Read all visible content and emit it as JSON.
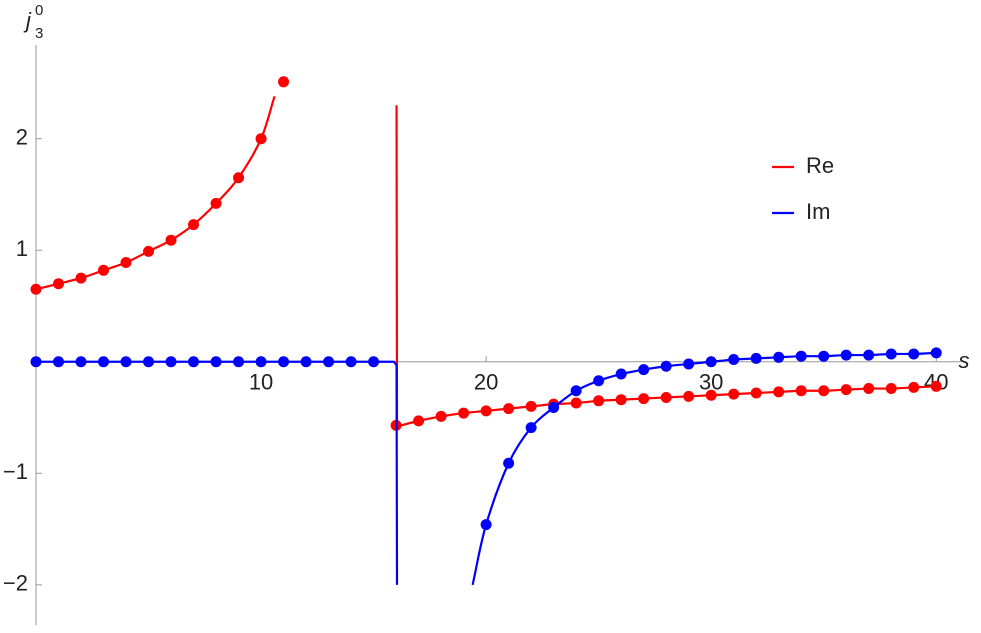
{
  "chart_data": {
    "type": "line",
    "x_label": "s",
    "y_label": {
      "base": "j",
      "sub": "3",
      "sup": "0"
    },
    "xlim": [
      0,
      41.1
    ],
    "ylim": [
      -2.36,
      2.84
    ],
    "xticks": [
      10,
      20,
      30,
      40
    ],
    "yticks": [
      {
        "value": -2,
        "label": "−2"
      },
      {
        "value": -1,
        "label": "−1"
      },
      1,
      2
    ],
    "legend": "upper right",
    "series": [
      {
        "name": "Re",
        "color": "#ff0000",
        "x": [
          0,
          1,
          2,
          3,
          4,
          5,
          6,
          7,
          8,
          9,
          10,
          10.6,
          null,
          16.02,
          16.04,
          17,
          18,
          19,
          20,
          21,
          22,
          23,
          24,
          25,
          26,
          27,
          28,
          29,
          30,
          31,
          32,
          33,
          34,
          35,
          36,
          37,
          38,
          39,
          40
        ],
        "values": [
          0.65,
          0.7,
          0.75,
          0.82,
          0.89,
          0.99,
          1.09,
          1.23,
          1.42,
          1.65,
          2.0,
          2.38,
          null,
          2.3,
          -0.58,
          -0.53,
          -0.49,
          -0.46,
          -0.44,
          -0.42,
          -0.4,
          -0.38,
          -0.37,
          -0.35,
          -0.34,
          -0.33,
          -0.32,
          -0.31,
          -0.3,
          -0.29,
          -0.28,
          -0.27,
          -0.26,
          -0.26,
          -0.25,
          -0.24,
          -0.24,
          -0.23,
          -0.22
        ],
        "marker_x": [
          0,
          1,
          2,
          3,
          4,
          5,
          6,
          7,
          8,
          9,
          10,
          11,
          16,
          17,
          18,
          19,
          20,
          21,
          22,
          23,
          24,
          25,
          26,
          27,
          28,
          29,
          30,
          31,
          32,
          33,
          34,
          35,
          36,
          37,
          38,
          39,
          40
        ],
        "marker_values": [
          0.65,
          0.7,
          0.75,
          0.82,
          0.89,
          0.99,
          1.09,
          1.23,
          1.42,
          1.65,
          2.0,
          2.51,
          -0.57,
          -0.53,
          -0.49,
          -0.46,
          -0.44,
          -0.42,
          -0.4,
          -0.38,
          -0.37,
          -0.35,
          -0.34,
          -0.33,
          -0.32,
          -0.31,
          -0.3,
          -0.29,
          -0.28,
          -0.27,
          -0.26,
          -0.26,
          -0.25,
          -0.24,
          -0.24,
          -0.23,
          -0.22
        ]
      },
      {
        "name": "Im",
        "color": "#0000ff",
        "x": [
          0,
          1,
          2,
          3,
          4,
          5,
          6,
          7,
          8,
          9,
          10,
          11,
          12,
          13,
          14,
          15,
          15.9,
          16.02,
          16.04,
          null,
          19.4,
          20,
          21,
          22,
          23,
          24,
          25,
          26,
          27,
          28,
          29,
          30,
          31,
          32,
          33,
          34,
          35,
          36,
          37,
          38,
          39,
          40
        ],
        "values": [
          0,
          0,
          0,
          0,
          0,
          0,
          0,
          0,
          0,
          0,
          0,
          0,
          0,
          0,
          0,
          0,
          0,
          -0.03,
          -2.0,
          null,
          -2.0,
          -1.46,
          -0.91,
          -0.59,
          -0.41,
          -0.26,
          -0.17,
          -0.11,
          -0.07,
          -0.04,
          -0.02,
          0.0,
          0.02,
          0.03,
          0.04,
          0.05,
          0.05,
          0.06,
          0.06,
          0.07,
          0.07,
          0.08
        ],
        "marker_x": [
          0,
          1,
          2,
          3,
          4,
          5,
          6,
          7,
          8,
          9,
          10,
          11,
          12,
          13,
          14,
          15,
          20,
          21,
          22,
          23,
          24,
          25,
          26,
          27,
          28,
          29,
          30,
          31,
          32,
          33,
          34,
          35,
          36,
          37,
          38,
          39,
          40
        ],
        "marker_values": [
          0,
          0,
          0,
          0,
          0,
          0,
          0,
          0,
          0,
          0,
          0,
          0,
          0,
          0,
          0,
          0,
          -1.46,
          -0.91,
          -0.59,
          -0.41,
          -0.26,
          -0.17,
          -0.11,
          -0.07,
          -0.04,
          -0.02,
          0.0,
          0.02,
          0.03,
          0.04,
          0.05,
          0.05,
          0.06,
          0.06,
          0.07,
          0.07,
          0.08
        ]
      }
    ]
  }
}
